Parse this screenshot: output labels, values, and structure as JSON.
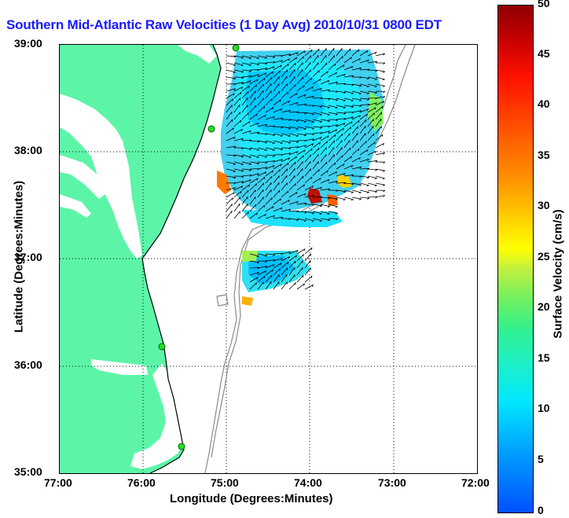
{
  "title": "Southern Mid-Atlantic Raw Velocities (1 Day Avg) 2010/10/31 0800 EDT",
  "axes": {
    "xlabel": "Longitude (Degrees:Minutes)",
    "ylabel": "Latitude (Degrees:Minutes)",
    "x_ticks": [
      "77:00",
      "76:00",
      "75:00",
      "74:00",
      "73:00",
      "72:00"
    ],
    "y_ticks": [
      "39:00",
      "38:00",
      "37:00",
      "36:00",
      "35:00"
    ]
  },
  "colorbar": {
    "label": "Surface Velocity (cm/s)",
    "ticks": [
      "50",
      "45",
      "40",
      "35",
      "30",
      "25",
      "20",
      "15",
      "10",
      "5",
      "0"
    ],
    "range": [
      0,
      50
    ],
    "colormap": "jet"
  },
  "colors": {
    "land": "#5cf5a8",
    "water": "#ffffff",
    "title": "#1a1aff",
    "coastline": "#000000",
    "bathymetry": "#8a8a8a",
    "station": "#22dd22"
  },
  "map": {
    "lon_range": [
      -77,
      -72
    ],
    "lat_range": [
      35,
      39
    ],
    "grid": "dotted",
    "stations": 5
  }
}
